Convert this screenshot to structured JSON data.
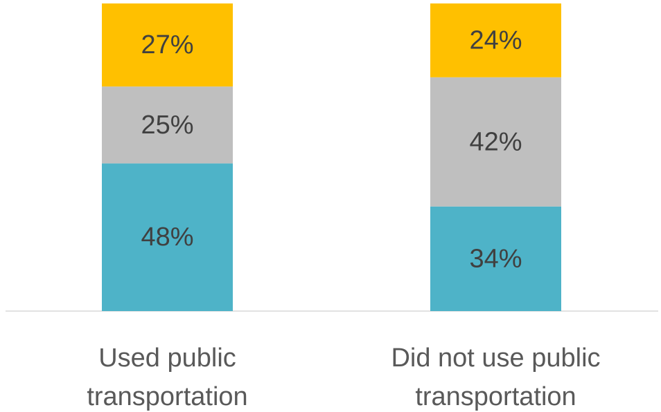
{
  "chart_data": {
    "type": "stacked_bar",
    "categories": [
      "Used public transportation",
      "Did not use public transportation"
    ],
    "series": [
      {
        "color": "#4eb3c8",
        "values": [
          48,
          34
        ],
        "value_labels": [
          "48%",
          "34%"
        ]
      },
      {
        "color": "#bfbfbf",
        "values": [
          25,
          42
        ],
        "value_labels": [
          "25%",
          "42%"
        ]
      },
      {
        "color": "#ffc000",
        "values": [
          27,
          24
        ],
        "value_labels": [
          "27%",
          "24%"
        ]
      }
    ],
    "ylim": [
      0,
      100
    ]
  }
}
